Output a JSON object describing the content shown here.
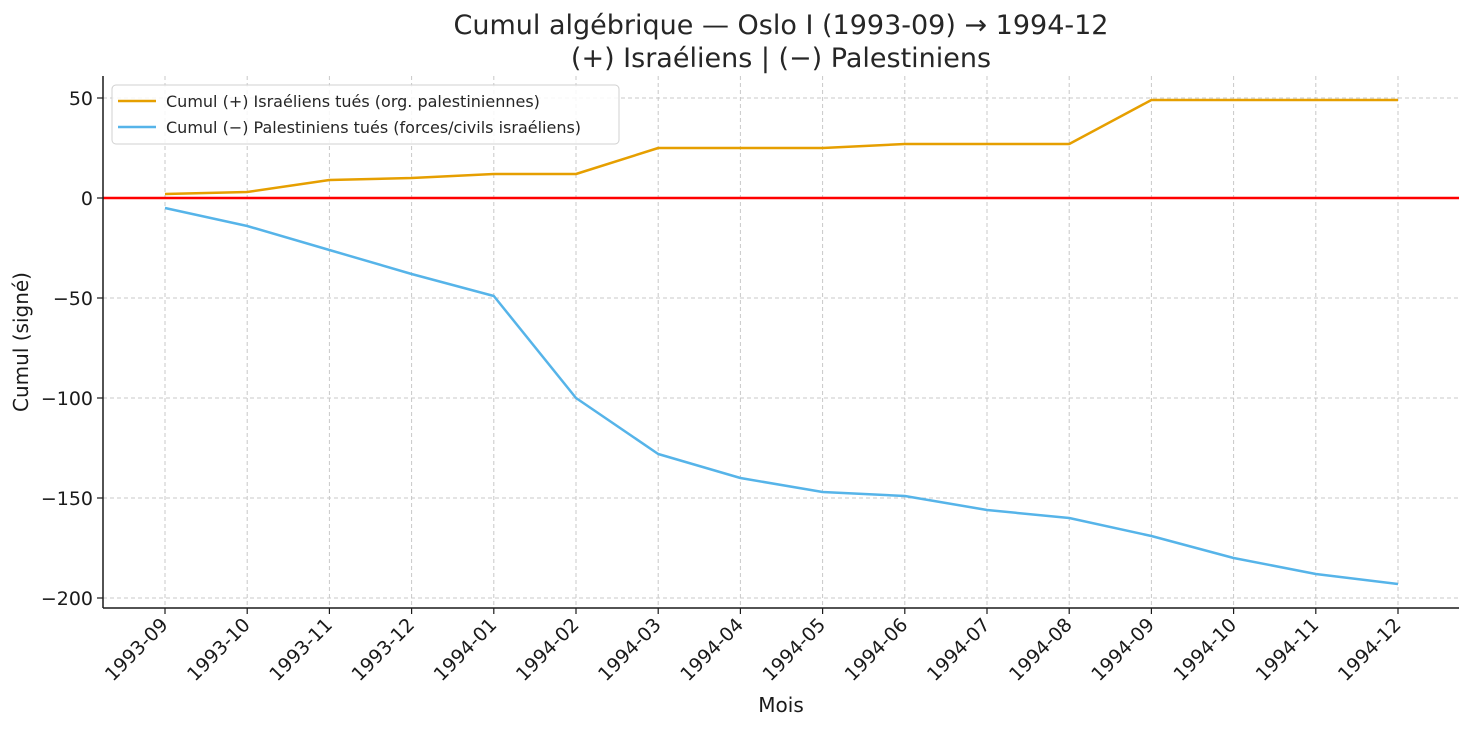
{
  "chart_data": {
    "type": "line",
    "title": "Cumul algébrique — Oslo I (1993-09) → 1994-12",
    "subtitle": "(+) Israéliens | (−) Palestiniens",
    "xlabel": "Mois",
    "ylabel": "Cumul (signé)",
    "categories": [
      "1993-09",
      "1993-10",
      "1993-11",
      "1993-12",
      "1994-01",
      "1994-02",
      "1994-03",
      "1994-04",
      "1994-05",
      "1994-06",
      "1994-07",
      "1994-08",
      "1994-09",
      "1994-10",
      "1994-11",
      "1994-12"
    ],
    "ylim": [
      -205,
      61
    ],
    "yticks": [
      50,
      0,
      -50,
      -100,
      -150,
      -200
    ],
    "ytick_labels": [
      "50",
      "0",
      "−50",
      "−100",
      "−150",
      "−200"
    ],
    "grid": true,
    "legend_position": "top-left",
    "reference_line": {
      "y": 0,
      "color": "#ff0000"
    },
    "series": [
      {
        "name": "Cumul (+) Israéliens tués (org. palestiniennes)",
        "color": "#e69f00",
        "values": [
          2,
          3,
          9,
          10,
          12,
          12,
          25,
          25,
          25,
          27,
          27,
          27,
          49,
          49,
          49,
          49
        ]
      },
      {
        "name": "Cumul (−) Palestiniens tués (forces/civils israéliens)",
        "color": "#56b4e9",
        "values": [
          -5,
          -14,
          -26,
          -38,
          -49,
          -100,
          -128,
          -140,
          -147,
          -149,
          -156,
          -160,
          -169,
          -180,
          -188,
          -193
        ]
      }
    ]
  }
}
